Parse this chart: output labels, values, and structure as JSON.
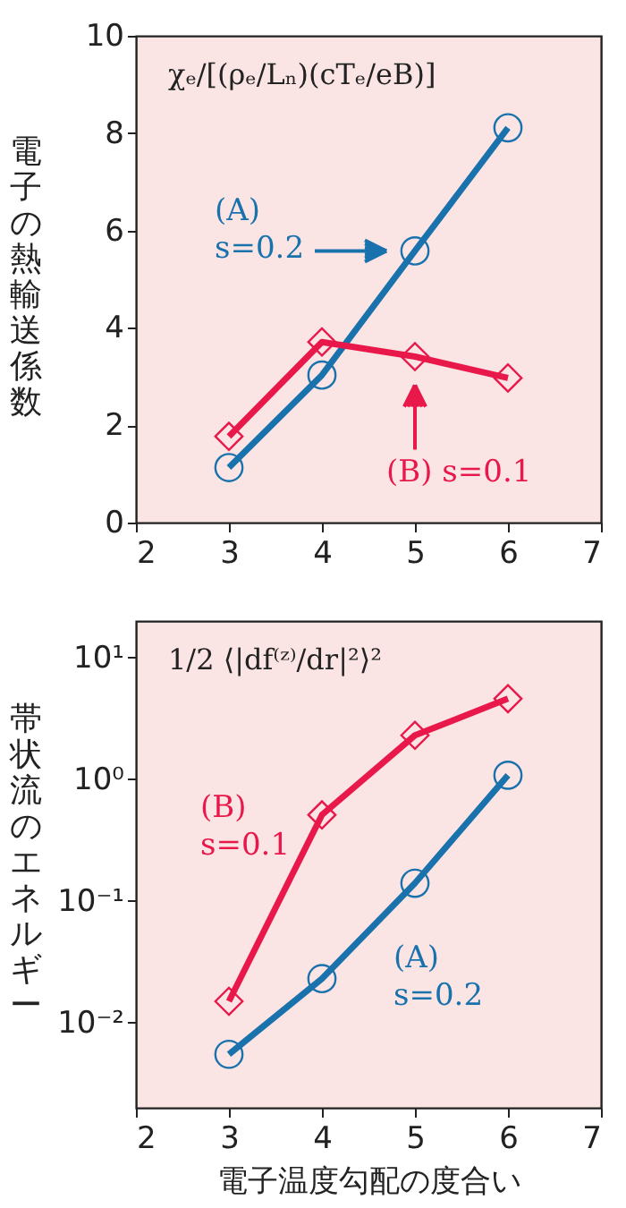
{
  "chart_data": [
    {
      "type": "line",
      "ylabel": "電子の熱輸送係数",
      "annotations": [
        "χₑ/[(ρₑ/Lₙ)(cTₑ/eB)]"
      ],
      "x": [
        3,
        4,
        5,
        6
      ],
      "xlim": [
        2,
        7
      ],
      "xticks": [
        2,
        3,
        4,
        5,
        6,
        7
      ],
      "ylim": [
        0,
        10
      ],
      "yticks": [
        0,
        2,
        4,
        6,
        8,
        10
      ],
      "series": [
        {
          "name": "(A) s=0.2",
          "color": "#1a72ad",
          "marker": "circle",
          "values": [
            1.13,
            3.03,
            5.58,
            8.11
          ]
        },
        {
          "name": "(B) s=0.1",
          "color": "#e8194a",
          "marker": "diamond",
          "values": [
            1.77,
            3.71,
            3.41,
            2.97
          ]
        }
      ]
    },
    {
      "type": "line",
      "ylabel": "帯状流のエネルギー",
      "xlabel": "電子温度勾配の度合い",
      "annotations": [
        "1/2 ⟨|df⁽ᶻ⁾/dr|²⟩²"
      ],
      "x": [
        3,
        4,
        5,
        6
      ],
      "xlim": [
        2,
        7
      ],
      "xticks": [
        2,
        3,
        4,
        5,
        6,
        7
      ],
      "log": "y",
      "ylim": [
        0.002,
        20
      ],
      "yticks": [
        {
          "value": 0.01,
          "label": "10⁻²"
        },
        {
          "value": 0.1,
          "label": "10⁻¹"
        },
        {
          "value": 1,
          "label": "10⁰"
        },
        {
          "value": 10,
          "label": "10¹"
        }
      ],
      "series": [
        {
          "name": "(A) s=0.2",
          "color": "#1a72ad",
          "marker": "circle",
          "values": [
            0.0055,
            0.023,
            0.14,
            1.08
          ]
        },
        {
          "name": "(B) s=0.1",
          "color": "#e8194a",
          "marker": "diamond",
          "values": [
            0.015,
            0.51,
            2.3,
            4.6
          ]
        }
      ]
    }
  ]
}
